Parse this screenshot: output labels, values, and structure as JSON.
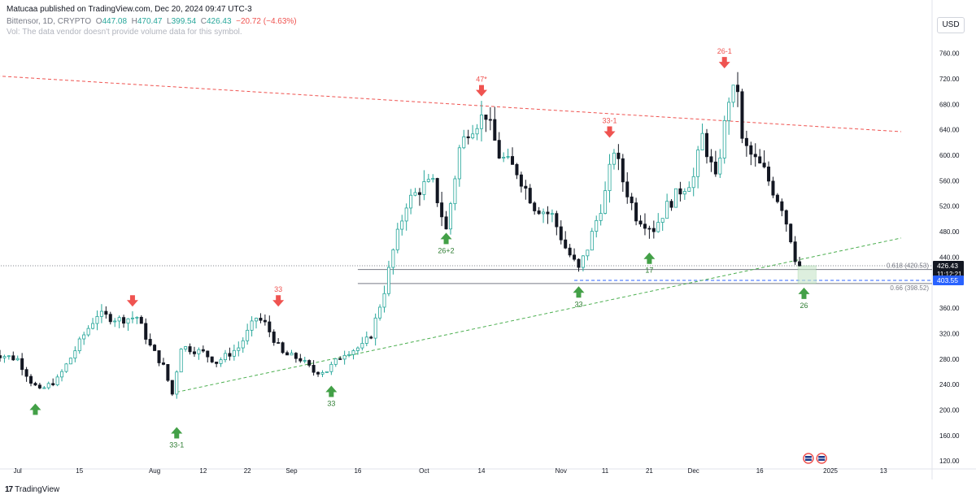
{
  "header": {
    "published": "Matucaa published on TradingView.com, Dec 20, 2024 09:47 UTC-3",
    "symbol": "Bittensor, 1D, CRYPTO",
    "o_label": "O",
    "o_value": "447.08",
    "h_label": "H",
    "h_value": "470.47",
    "l_label": "L",
    "l_value": "399.54",
    "c_label": "C",
    "c_value": "426.43",
    "change": "−20.72 (−4.63%)",
    "vol_note": "Vol: The data vendor doesn't provide volume data for this symbol."
  },
  "currency": "USD",
  "logo": {
    "icon": "tradingview-logo-icon",
    "text": "TradingView"
  },
  "chart_data": {
    "type": "candlestick",
    "y_axis": {
      "ticks": [
        120,
        160,
        200,
        240,
        280,
        320,
        360,
        400,
        440,
        480,
        520,
        560,
        600,
        640,
        680,
        720,
        760
      ],
      "ylim": [
        110,
        785
      ],
      "position": "right"
    },
    "x_axis": {
      "ticks": [
        {
          "label": "Jul",
          "date": "2024-07-01"
        },
        {
          "label": "15",
          "date": "2024-07-15"
        },
        {
          "label": "Aug",
          "date": "2024-08-01"
        },
        {
          "label": "12",
          "date": "2024-08-12"
        },
        {
          "label": "22",
          "date": "2024-08-22"
        },
        {
          "label": "Sep",
          "date": "2024-09-01"
        },
        {
          "label": "16",
          "date": "2024-09-16"
        },
        {
          "label": "Oct",
          "date": "2024-10-01"
        },
        {
          "label": "14",
          "date": "2024-10-14"
        },
        {
          "label": "Nov",
          "date": "2024-11-01"
        },
        {
          "label": "11",
          "date": "2024-11-11"
        },
        {
          "label": "21",
          "date": "2024-11-21"
        },
        {
          "label": "Dec",
          "date": "2024-12-01"
        },
        {
          "label": "16",
          "date": "2024-12-16"
        },
        {
          "label": "2025",
          "date": "2025-01-01"
        },
        {
          "label": "13",
          "date": "2025-01-13"
        }
      ]
    },
    "price_path": [
      [
        "2024-06-25",
        290
      ],
      [
        "2024-07-01",
        280
      ],
      [
        "2024-07-04",
        245
      ],
      [
        "2024-07-06",
        230
      ],
      [
        "2024-07-10",
        248
      ],
      [
        "2024-07-13",
        282
      ],
      [
        "2024-07-16",
        318
      ],
      [
        "2024-07-19",
        350
      ],
      [
        "2024-07-24",
        342
      ],
      [
        "2024-07-28",
        346
      ],
      [
        "2024-07-31",
        300
      ],
      [
        "2024-08-03",
        268
      ],
      [
        "2024-08-05",
        225
      ],
      [
        "2024-08-07",
        300
      ],
      [
        "2024-08-12",
        290
      ],
      [
        "2024-08-15",
        275
      ],
      [
        "2024-08-20",
        298
      ],
      [
        "2024-08-24",
        345
      ],
      [
        "2024-08-26",
        335
      ],
      [
        "2024-08-30",
        288
      ],
      [
        "2024-09-03",
        280
      ],
      [
        "2024-09-06",
        260
      ],
      [
        "2024-09-09",
        262
      ],
      [
        "2024-09-13",
        290
      ],
      [
        "2024-09-17",
        300
      ],
      [
        "2024-09-19",
        318
      ],
      [
        "2024-09-22",
        388
      ],
      [
        "2024-09-24",
        450
      ],
      [
        "2024-09-27",
        525
      ],
      [
        "2024-10-01",
        553
      ],
      [
        "2024-10-03",
        555
      ],
      [
        "2024-10-06",
        482
      ],
      [
        "2024-10-09",
        610
      ],
      [
        "2024-10-11",
        640
      ],
      [
        "2024-10-15",
        665
      ],
      [
        "2024-10-18",
        600
      ],
      [
        "2024-10-22",
        575
      ],
      [
        "2024-10-26",
        520
      ],
      [
        "2024-10-30",
        505
      ],
      [
        "2024-11-02",
        455
      ],
      [
        "2024-11-05",
        420
      ],
      [
        "2024-11-07",
        455
      ],
      [
        "2024-11-11",
        540
      ],
      [
        "2024-11-13",
        610
      ],
      [
        "2024-11-15",
        560
      ],
      [
        "2024-11-18",
        505
      ],
      [
        "2024-11-22",
        485
      ],
      [
        "2024-11-25",
        520
      ],
      [
        "2024-11-28",
        545
      ],
      [
        "2024-12-01",
        565
      ],
      [
        "2024-12-03",
        630
      ],
      [
        "2024-12-06",
        560
      ],
      [
        "2024-12-09",
        690
      ],
      [
        "2024-12-11",
        705
      ],
      [
        "2024-12-12",
        620
      ],
      [
        "2024-12-14",
        600
      ],
      [
        "2024-12-17",
        575
      ],
      [
        "2024-12-19",
        545
      ],
      [
        "2024-12-21",
        520
      ],
      [
        "2024-12-23",
        470
      ],
      [
        "2024-12-24",
        440
      ],
      [
        "2024-12-25",
        426.43
      ]
    ],
    "trendlines": [
      {
        "name": "resistance",
        "color": "#ef5350",
        "style": "dashed",
        "points": [
          [
            "2024-06-25",
            725
          ],
          [
            "2025-01-17",
            637
          ]
        ]
      },
      {
        "name": "support",
        "color": "#4caf50",
        "style": "dashed",
        "points": [
          [
            "2024-08-06",
            228
          ],
          [
            "2025-01-17",
            470
          ]
        ]
      }
    ],
    "horizontal_levels": [
      {
        "label": "0.618 (420.53)",
        "value": 420.53,
        "from": "2024-09-16",
        "color": "#787b86"
      },
      {
        "label": "0.66 (398.52)",
        "value": 398.52,
        "from": "2024-09-16",
        "color": "#787b86"
      },
      {
        "label": "",
        "value": 403.55,
        "from": "2024-11-04",
        "color": "#2962ff",
        "style": "dashed"
      },
      {
        "label": "",
        "value": 426.43,
        "from": "2024-06-25",
        "color": "#787b86",
        "style": "dotted"
      }
    ],
    "markers": [
      {
        "date": "2024-07-05",
        "price": 200,
        "type": "buy",
        "label": ""
      },
      {
        "date": "2024-07-27",
        "price": 370,
        "type": "sell",
        "label": ""
      },
      {
        "date": "2024-08-06",
        "price": 163,
        "type": "buy",
        "label": "33-1"
      },
      {
        "date": "2024-08-29",
        "price": 370,
        "type": "sell",
        "label": "33"
      },
      {
        "date": "2024-09-10",
        "price": 228,
        "type": "buy",
        "label": "33"
      },
      {
        "date": "2024-10-06",
        "price": 468,
        "type": "buy",
        "label": "26+2"
      },
      {
        "date": "2024-10-14",
        "price": 700,
        "type": "sell",
        "label": "47*"
      },
      {
        "date": "2024-11-05",
        "price": 384,
        "type": "buy",
        "label": "33"
      },
      {
        "date": "2024-11-12",
        "price": 635,
        "type": "sell",
        "label": "33-1"
      },
      {
        "date": "2024-11-21",
        "price": 437,
        "type": "buy",
        "label": "17"
      },
      {
        "date": "2024-12-08",
        "price": 744,
        "type": "sell",
        "label": "26-1"
      },
      {
        "date": "2024-12-26",
        "price": 382,
        "type": "buy",
        "label": "26"
      }
    ],
    "price_labels": [
      {
        "value": 426.43,
        "text": "426.43",
        "sub": "11:12:21",
        "bg": "#131722",
        "color": "#ffffff"
      },
      {
        "value": 403.55,
        "text": "403.55",
        "bg": "#2962ff",
        "color": "#ffffff"
      }
    ],
    "event_icons": [
      {
        "date": "2024-12-27",
        "icon": "us-flag-event-icon"
      },
      {
        "date": "2024-12-30",
        "icon": "us-flag-event-icon"
      }
    ],
    "colors": {
      "up": "#26a69a",
      "down": "#131722",
      "body_up": "#ffffff",
      "sell": "#ef5350",
      "buy": "#43a047",
      "highlight": "#c8e6c9"
    }
  }
}
